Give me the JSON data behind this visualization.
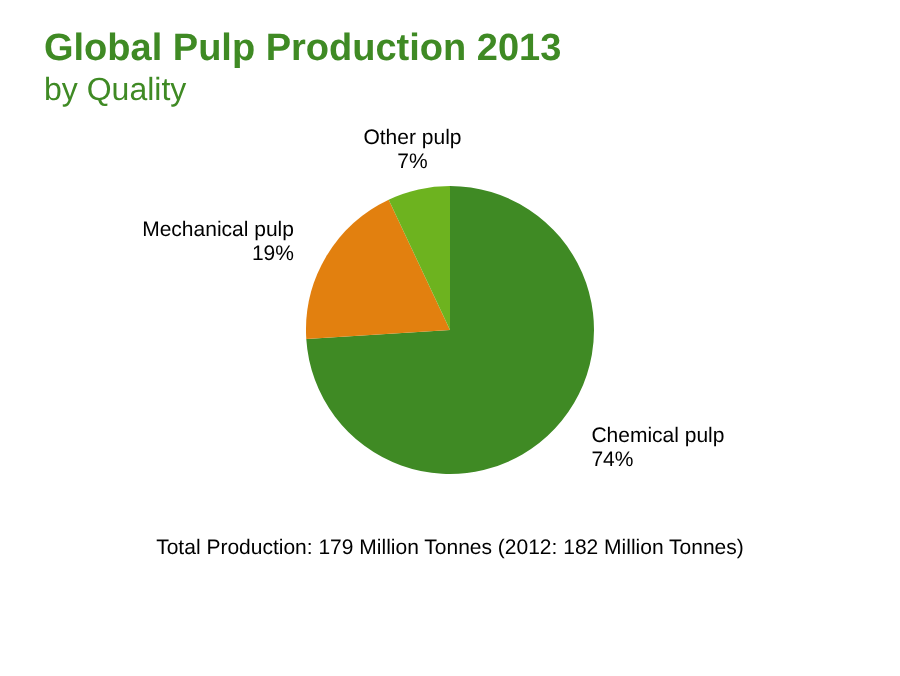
{
  "chart_data": {
    "type": "pie",
    "title": "Global Pulp Production 2013",
    "subtitle": "by Quality",
    "categories": [
      "Chemical pulp",
      "Mechanical pulp",
      "Other pulp"
    ],
    "values": [
      74,
      19,
      7
    ],
    "value_labels": [
      "74%",
      "19%",
      "7%"
    ],
    "colors": [
      "#3f8a24",
      "#e2800f",
      "#6db31f"
    ],
    "legend": false,
    "annotations": [
      "Total Production: 179 Million Tonnes (2012: 182 Million Tonnes)"
    ]
  }
}
